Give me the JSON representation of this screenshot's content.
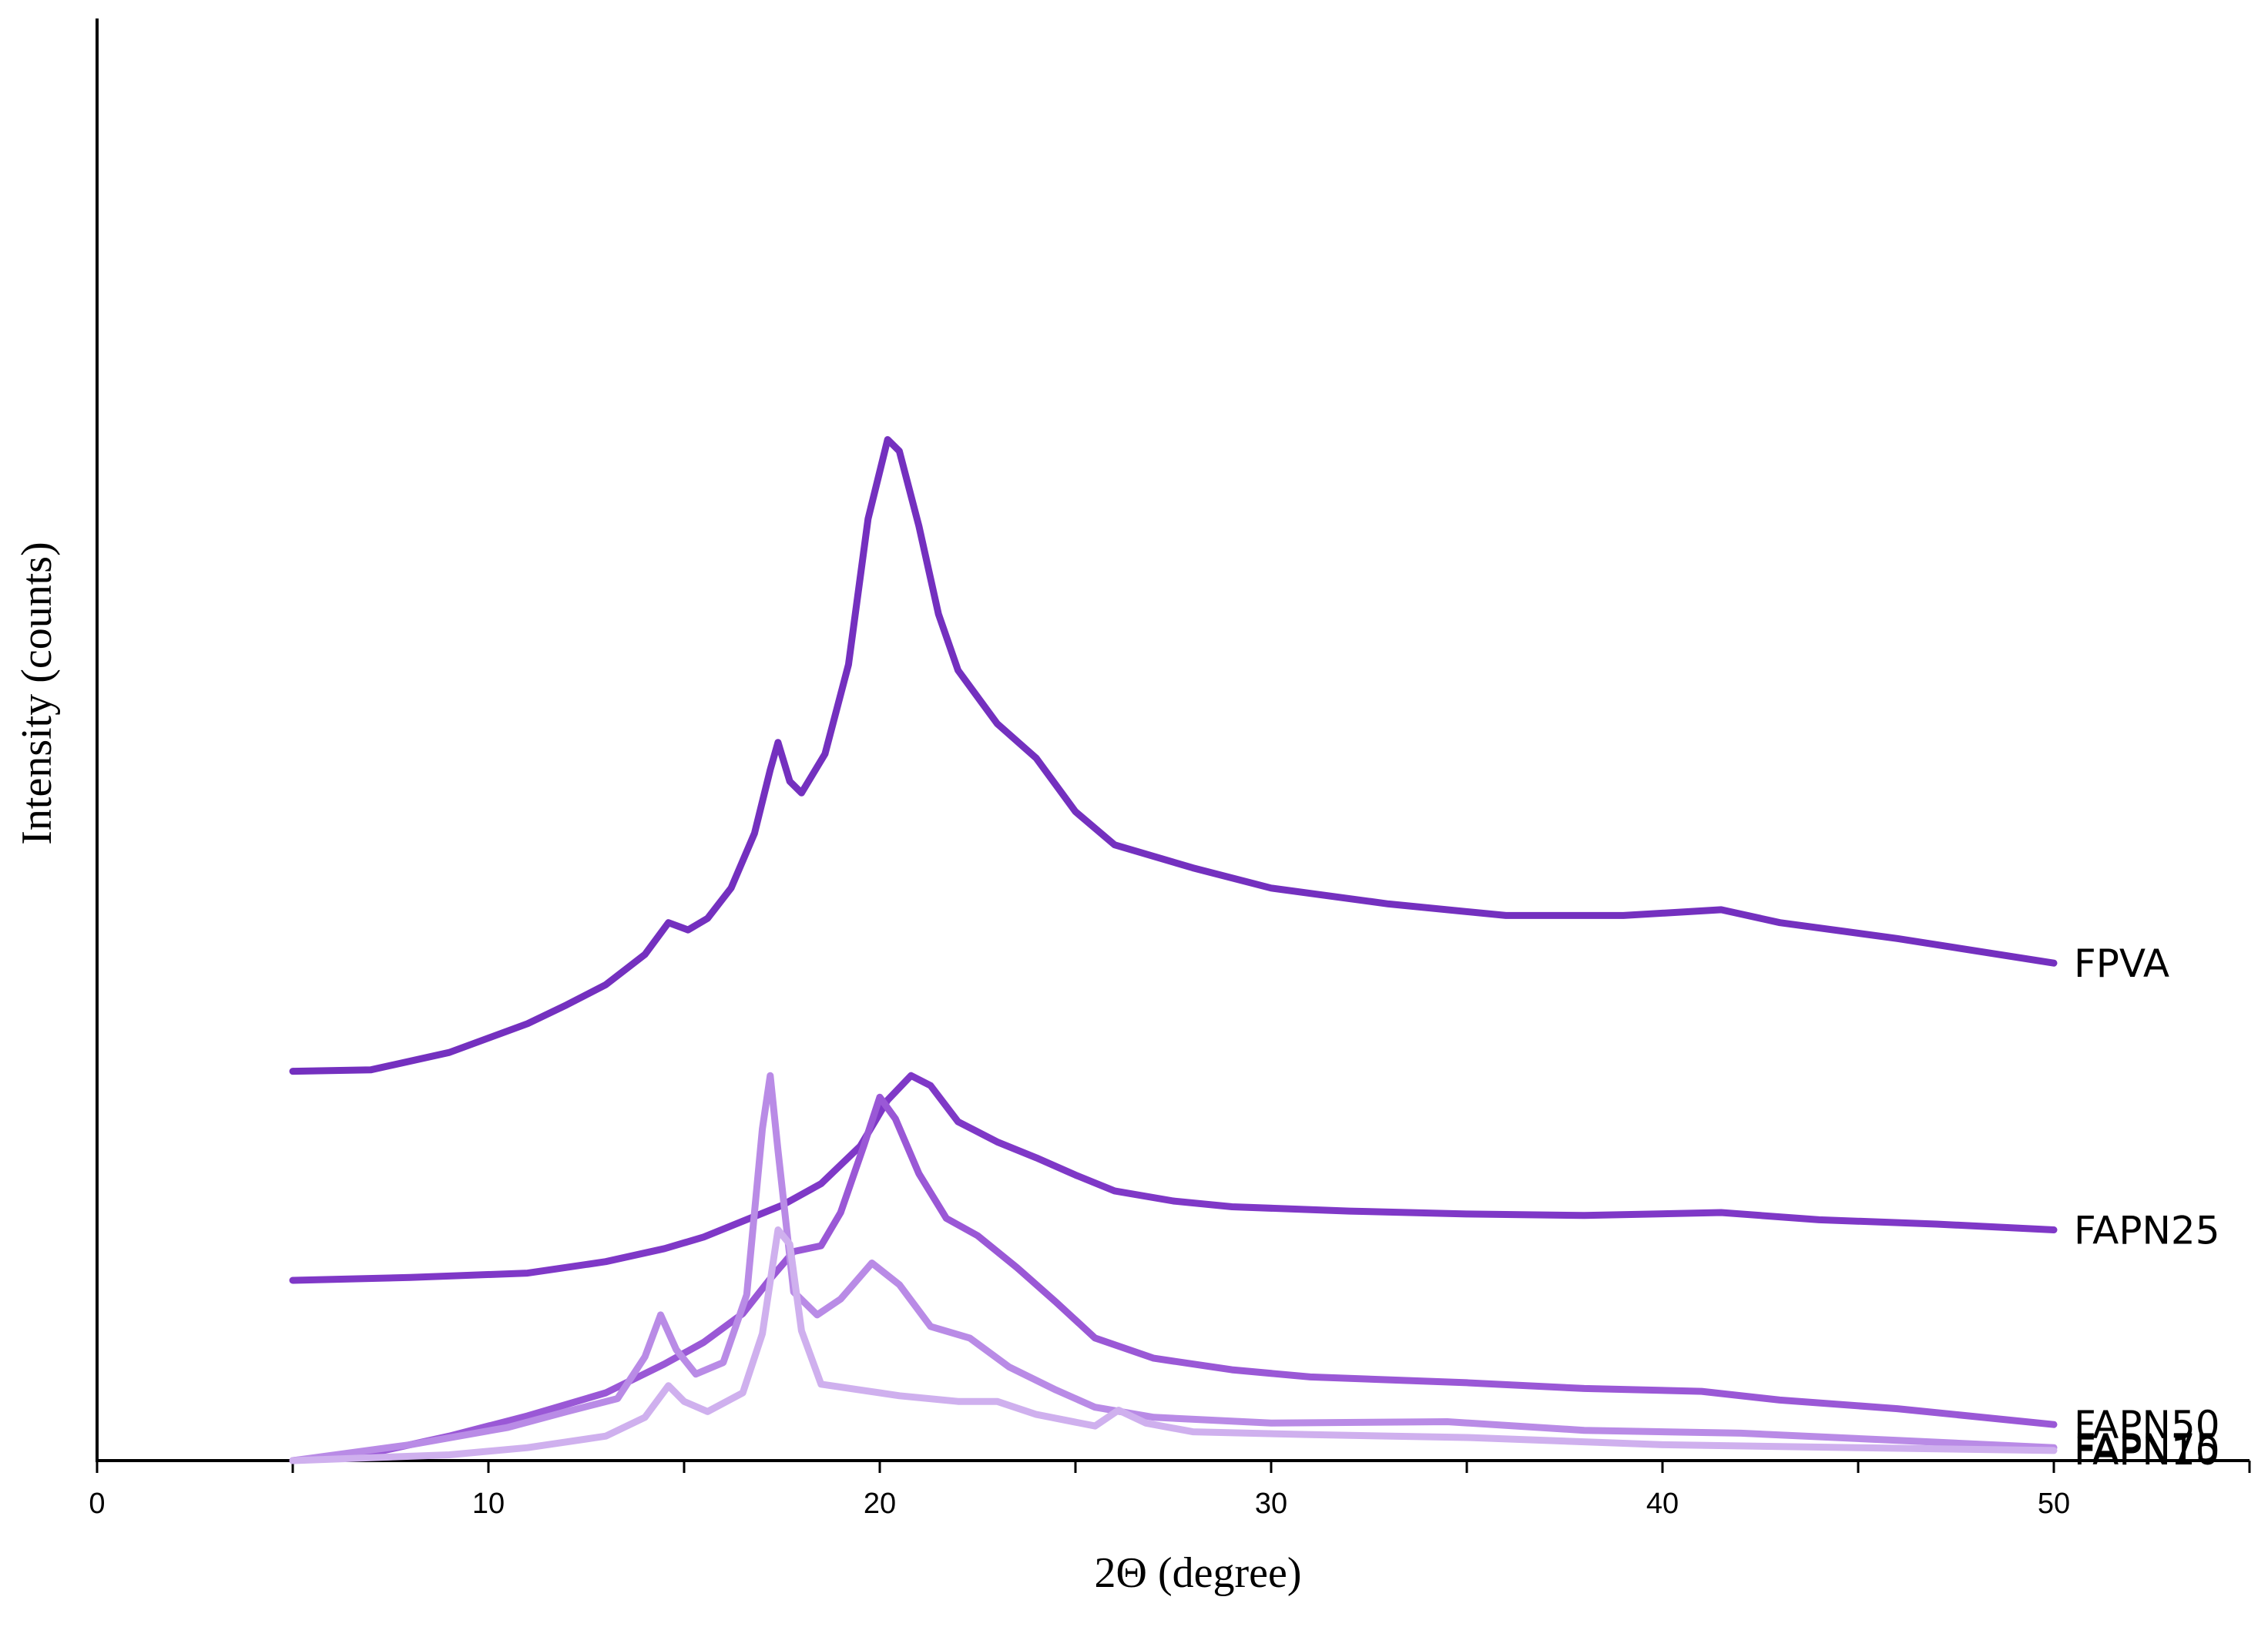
{
  "chart_data": {
    "type": "line",
    "title": "",
    "xlabel": "2Θ (degree)",
    "ylabel": "Intensity (counts)",
    "xlim": [
      0,
      55
    ],
    "xticks": [
      0,
      10,
      20,
      30,
      40,
      50
    ],
    "y_tick_labels": false,
    "grid": false,
    "legend": "inline labels at right end of each curve",
    "series": [
      {
        "name": "FPVA",
        "color": "#7430bf",
        "points": [
          [
            5,
            0.27
          ],
          [
            7,
            0.271
          ],
          [
            9,
            0.283
          ],
          [
            11,
            0.303
          ],
          [
            12,
            0.316
          ],
          [
            13,
            0.33
          ],
          [
            14,
            0.351
          ],
          [
            14.6,
            0.373
          ],
          [
            15.1,
            0.368
          ],
          [
            15.6,
            0.376
          ],
          [
            16.2,
            0.397
          ],
          [
            16.8,
            0.435
          ],
          [
            17.2,
            0.479
          ],
          [
            17.4,
            0.498
          ],
          [
            17.7,
            0.471
          ],
          [
            18.0,
            0.463
          ],
          [
            18.6,
            0.49
          ],
          [
            19.2,
            0.552
          ],
          [
            19.7,
            0.653
          ],
          [
            20.2,
            0.708
          ],
          [
            20.5,
            0.7
          ],
          [
            21.0,
            0.648
          ],
          [
            21.5,
            0.587
          ],
          [
            22,
            0.548
          ],
          [
            23,
            0.511
          ],
          [
            24,
            0.487
          ],
          [
            25,
            0.45
          ],
          [
            26,
            0.427
          ],
          [
            28,
            0.411
          ],
          [
            30,
            0.397
          ],
          [
            33,
            0.386
          ],
          [
            36,
            0.378
          ],
          [
            39,
            0.378
          ],
          [
            41.5,
            0.382
          ],
          [
            43,
            0.373
          ],
          [
            46,
            0.362
          ],
          [
            50,
            0.345
          ]
        ]
      },
      {
        "name": "FAPN25",
        "color": "#7f38c7",
        "points": [
          [
            5,
            0.125
          ],
          [
            8,
            0.127
          ],
          [
            11,
            0.13
          ],
          [
            13,
            0.138
          ],
          [
            14.5,
            0.147
          ],
          [
            15.5,
            0.155
          ],
          [
            16.5,
            0.166
          ],
          [
            17.5,
            0.177
          ],
          [
            18.5,
            0.192
          ],
          [
            19.5,
            0.218
          ],
          [
            20.2,
            0.25
          ],
          [
            20.8,
            0.267
          ],
          [
            21.3,
            0.26
          ],
          [
            22,
            0.235
          ],
          [
            23,
            0.221
          ],
          [
            24,
            0.21
          ],
          [
            25,
            0.198
          ],
          [
            26,
            0.187
          ],
          [
            27.5,
            0.18
          ],
          [
            29,
            0.176
          ],
          [
            32,
            0.173
          ],
          [
            35,
            0.171
          ],
          [
            38,
            0.17
          ],
          [
            41.5,
            0.172
          ],
          [
            44,
            0.167
          ],
          [
            47,
            0.164
          ],
          [
            50,
            0.16
          ]
        ]
      },
      {
        "name": "FAPN50",
        "color": "#9a58d6",
        "points": [
          [
            5,
            0.0
          ],
          [
            7,
            0.005
          ],
          [
            9,
            0.017
          ],
          [
            11,
            0.031
          ],
          [
            13,
            0.047
          ],
          [
            14.5,
            0.067
          ],
          [
            15.5,
            0.082
          ],
          [
            16.5,
            0.102
          ],
          [
            17.2,
            0.126
          ],
          [
            17.8,
            0.145
          ],
          [
            18.5,
            0.149
          ],
          [
            19.0,
            0.172
          ],
          [
            19.6,
            0.219
          ],
          [
            20.0,
            0.252
          ],
          [
            20.4,
            0.237
          ],
          [
            21.0,
            0.199
          ],
          [
            21.7,
            0.168
          ],
          [
            22.5,
            0.156
          ],
          [
            23.5,
            0.134
          ],
          [
            24.5,
            0.11
          ],
          [
            25.5,
            0.085
          ],
          [
            27,
            0.071
          ],
          [
            29,
            0.063
          ],
          [
            31,
            0.058
          ],
          [
            35,
            0.054
          ],
          [
            38,
            0.05
          ],
          [
            41,
            0.048
          ],
          [
            43,
            0.042
          ],
          [
            46,
            0.036
          ],
          [
            50,
            0.025
          ]
        ]
      },
      {
        "name": "FAPN75",
        "color": "#b98be6",
        "points": [
          [
            5,
            0.0
          ],
          [
            8,
            0.011
          ],
          [
            10.5,
            0.023
          ],
          [
            12,
            0.034
          ],
          [
            13.3,
            0.043
          ],
          [
            14.0,
            0.072
          ],
          [
            14.4,
            0.101
          ],
          [
            14.8,
            0.077
          ],
          [
            15.3,
            0.06
          ],
          [
            16.0,
            0.068
          ],
          [
            16.6,
            0.115
          ],
          [
            17.0,
            0.23
          ],
          [
            17.2,
            0.267
          ],
          [
            17.4,
            0.215
          ],
          [
            17.8,
            0.117
          ],
          [
            18.4,
            0.101
          ],
          [
            19.0,
            0.112
          ],
          [
            19.8,
            0.137
          ],
          [
            20.5,
            0.122
          ],
          [
            21.3,
            0.093
          ],
          [
            22.3,
            0.085
          ],
          [
            23.3,
            0.065
          ],
          [
            24.5,
            0.049
          ],
          [
            25.5,
            0.037
          ],
          [
            27,
            0.03
          ],
          [
            30,
            0.026
          ],
          [
            34.5,
            0.027
          ],
          [
            38,
            0.021
          ],
          [
            42,
            0.019
          ],
          [
            46,
            0.014
          ],
          [
            50,
            0.009
          ]
        ]
      },
      {
        "name": "FAPN10",
        "color": "#cfb0ee",
        "points": [
          [
            5,
            0.0
          ],
          [
            9,
            0.004
          ],
          [
            11,
            0.009
          ],
          [
            13,
            0.017
          ],
          [
            14.0,
            0.03
          ],
          [
            14.6,
            0.052
          ],
          [
            15.0,
            0.041
          ],
          [
            15.6,
            0.034
          ],
          [
            16.5,
            0.047
          ],
          [
            17.0,
            0.088
          ],
          [
            17.4,
            0.16
          ],
          [
            17.7,
            0.15
          ],
          [
            18.0,
            0.09
          ],
          [
            18.5,
            0.053
          ],
          [
            19.5,
            0.049
          ],
          [
            20.5,
            0.045
          ],
          [
            22,
            0.041
          ],
          [
            23,
            0.041
          ],
          [
            24,
            0.032
          ],
          [
            25.5,
            0.024
          ],
          [
            26.1,
            0.035
          ],
          [
            26.8,
            0.026
          ],
          [
            28,
            0.02
          ],
          [
            31,
            0.018
          ],
          [
            35,
            0.016
          ],
          [
            40,
            0.011
          ],
          [
            45,
            0.009
          ],
          [
            50,
            0.007
          ]
        ]
      }
    ]
  }
}
